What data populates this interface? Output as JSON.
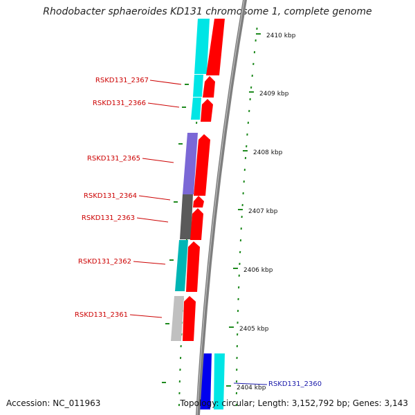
{
  "title": "Rhodobacter sphaeroides KD131 chromosome 1, complete genome",
  "accession": "Accession: NC_011963",
  "topology": "Topology: circular; Length: 3,152,792 bp; Genes: 3,143",
  "scale_ticks": [
    {
      "kbp": 2410,
      "label": "2410 kbp"
    },
    {
      "kbp": 2409,
      "label": "2409 kbp"
    },
    {
      "kbp": 2408,
      "label": "2408 kbp"
    },
    {
      "kbp": 2407,
      "label": "2407 kbp"
    },
    {
      "kbp": 2406,
      "label": "2406 kbp"
    },
    {
      "kbp": 2405,
      "label": "2405 kbp"
    },
    {
      "kbp": 2404,
      "label": "2404 kbp"
    }
  ],
  "gene_labels": [
    {
      "id": "RSKD131_2367",
      "label": "RSKD131_2367",
      "color": "#cc0000"
    },
    {
      "id": "RSKD131_2366",
      "label": "RSKD131_2366",
      "color": "#cc0000"
    },
    {
      "id": "RSKD131_2365",
      "label": "RSKD131_2365",
      "color": "#cc0000"
    },
    {
      "id": "RSKD131_2364",
      "label": "RSKD131_2364",
      "color": "#cc0000"
    },
    {
      "id": "RSKD131_2363",
      "label": "RSKD131_2363",
      "color": "#cc0000"
    },
    {
      "id": "RSKD131_2362",
      "label": "RSKD131_2362",
      "color": "#cc0000"
    },
    {
      "id": "RSKD131_2361",
      "label": "RSKD131_2361",
      "color": "#cc0000"
    },
    {
      "id": "RSKD131_2360",
      "label": "RSKD131_2360",
      "color": "#1a1aaa"
    }
  ],
  "colors": {
    "backbone": "#808080",
    "gene_arrow": "#ff0000",
    "tick": "#1e8a1e",
    "cog_cyan": "#00e5e5",
    "cog_purple": "#7b68d6",
    "cog_dark": "#5a5a5a",
    "cog_teal": "#00b5b5",
    "cog_grey": "#c0c0c0",
    "cog_blue": "#0000ee"
  }
}
